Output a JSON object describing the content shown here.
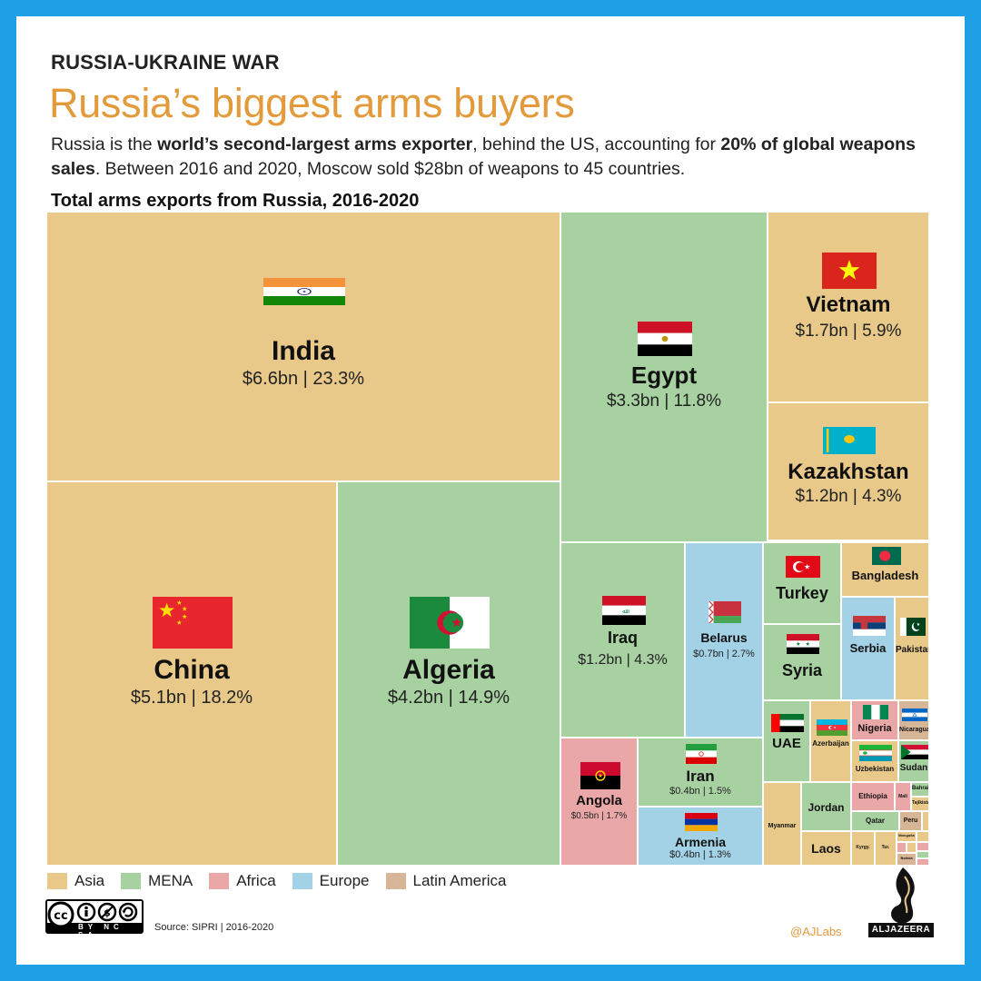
{
  "header": {
    "kicker": "RUSSIA-UKRAINE WAR",
    "title": "Russia’s biggest arms buyers",
    "subtitle_parts": [
      {
        "t": "Russia is the ",
        "b": false
      },
      {
        "t": "world’s second-largest arms exporter",
        "b": true
      },
      {
        "t": ", behind the US, accounting for ",
        "b": false
      },
      {
        "t": "20% of global weapons sales",
        "b": true
      },
      {
        "t": ". Between 2016 and 2020, Moscow sold $28bn of weapons to 45 countries.",
        "b": false
      }
    ]
  },
  "chart_data": {
    "type": "treemap",
    "title": "Total arms exports from Russia, 2016-2020",
    "region_colors": {
      "Asia": "#e8c98a",
      "MENA": "#a8d1a2",
      "Africa": "#eaa7a8",
      "Europe": "#a3d2e6",
      "Latin America": "#d7b597"
    },
    "items": [
      {
        "name": "India",
        "region": "Asia",
        "value_bn": 6.6,
        "share": 23.3,
        "label": "$6.6bn | 23.3%",
        "flag": "india"
      },
      {
        "name": "China",
        "region": "Asia",
        "value_bn": 5.1,
        "share": 18.2,
        "label": "$5.1bn | 18.2%",
        "flag": "china"
      },
      {
        "name": "Algeria",
        "region": "MENA",
        "value_bn": 4.2,
        "share": 14.9,
        "label": "$4.2bn | 14.9%",
        "flag": "algeria"
      },
      {
        "name": "Egypt",
        "region": "MENA",
        "value_bn": 3.3,
        "share": 11.8,
        "label": "$3.3bn | 11.8%",
        "flag": "egypt"
      },
      {
        "name": "Vietnam",
        "region": "Asia",
        "value_bn": 1.7,
        "share": 5.9,
        "label": "$1.7bn | 5.9%",
        "flag": "vietnam"
      },
      {
        "name": "Kazakhstan",
        "region": "Asia",
        "value_bn": 1.2,
        "share": 4.3,
        "label": "$1.2bn | 4.3%",
        "flag": "kazakhstan"
      },
      {
        "name": "Iraq",
        "region": "MENA",
        "value_bn": 1.2,
        "share": 4.3,
        "label": "$1.2bn | 4.3%",
        "flag": "iraq"
      },
      {
        "name": "Belarus",
        "region": "Europe",
        "value_bn": 0.7,
        "share": 2.7,
        "label": "$0.7bn | 2.7%",
        "flag": "belarus"
      },
      {
        "name": "Angola",
        "region": "Africa",
        "value_bn": 0.5,
        "share": 1.7,
        "label": "$0.5bn | 1.7%",
        "flag": "angola"
      },
      {
        "name": "Iran",
        "region": "MENA",
        "value_bn": 0.4,
        "share": 1.5,
        "label": "$0.4bn | 1.5%",
        "flag": "iran"
      },
      {
        "name": "Armenia",
        "region": "Europe",
        "value_bn": 0.4,
        "share": 1.3,
        "label": "$0.4bn | 1.3%",
        "flag": "armenia"
      },
      {
        "name": "Turkey",
        "region": "MENA",
        "flag": "turkey"
      },
      {
        "name": "Syria",
        "region": "MENA",
        "flag": "syria"
      },
      {
        "name": "Bangladesh",
        "region": "Asia",
        "flag": "bangladesh"
      },
      {
        "name": "Serbia",
        "region": "Europe",
        "flag": "serbia"
      },
      {
        "name": "Pakistan",
        "region": "Asia",
        "flag": "pakistan"
      },
      {
        "name": "UAE",
        "region": "MENA",
        "flag": "uae"
      },
      {
        "name": "Azerbaijan",
        "region": "Asia",
        "flag": "azerbaijan"
      },
      {
        "name": "Nigeria",
        "region": "Africa",
        "flag": "nigeria"
      },
      {
        "name": "Nicaragua",
        "region": "Latin America",
        "flag": "nicaragua"
      },
      {
        "name": "Uzbekistan",
        "region": "Asia",
        "flag": "uzbekistan"
      },
      {
        "name": "Sudan",
        "region": "MENA",
        "flag": "sudan"
      },
      {
        "name": "Myanmar",
        "region": "Asia"
      },
      {
        "name": "Jordan",
        "region": "MENA"
      },
      {
        "name": "Ethiopia",
        "region": "Africa"
      },
      {
        "name": "Mali",
        "region": "Africa"
      },
      {
        "name": "Bahrain",
        "region": "MENA"
      },
      {
        "name": "Tajikistan",
        "region": "Asia"
      },
      {
        "name": "Qatar",
        "region": "MENA"
      },
      {
        "name": "Peru",
        "region": "Latin America"
      },
      {
        "name": "Laos",
        "region": "Asia"
      },
      {
        "name": "Kyrgy.",
        "region": "Asia"
      },
      {
        "name": "Tur.",
        "region": "Asia"
      },
      {
        "name": "Mongolia",
        "region": "Asia"
      },
      {
        "name": "Bolivia",
        "region": "Latin America"
      },
      {
        "name": "",
        "region": "Asia"
      },
      {
        "name": "",
        "region": "Asia"
      },
      {
        "name": "",
        "region": "Africa"
      },
      {
        "name": "",
        "region": "MENA"
      },
      {
        "name": "",
        "region": "Africa"
      },
      {
        "name": "",
        "region": "Africa"
      },
      {
        "name": "",
        "region": "Asia"
      },
      {
        "name": "",
        "region": "Latin America"
      },
      {
        "name": "",
        "region": "MENA"
      }
    ]
  },
  "legend": [
    "Asia",
    "MENA",
    "Africa",
    "Europe",
    "Latin America"
  ],
  "footer": {
    "license": "BY NC SA",
    "source": "Source: SIPRI | 2016-2020",
    "handle": "@AJLabs",
    "brand": "ALJAZEERA"
  }
}
